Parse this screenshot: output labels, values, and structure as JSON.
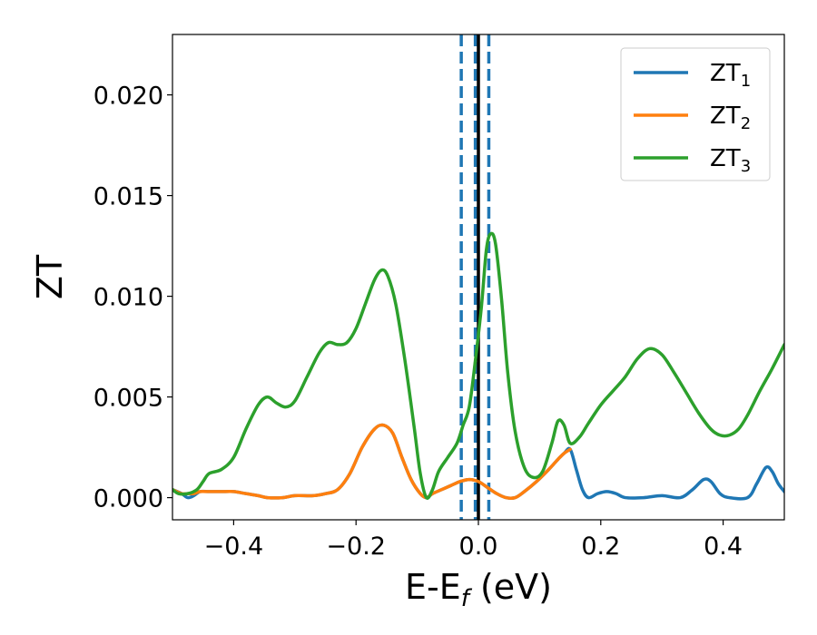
{
  "chart_data": {
    "type": "line",
    "title": "",
    "xlabel": {
      "main": "E-E",
      "sub": "f",
      "suffix": " (eV)"
    },
    "ylabel": "ZT",
    "xlim": [
      -0.5,
      0.5
    ],
    "ylim": [
      -0.0011,
      0.023
    ],
    "xticks": [
      {
        "value": -0.4,
        "label": "−0.4"
      },
      {
        "value": -0.2,
        "label": "−0.2"
      },
      {
        "value": 0.0,
        "label": "0.0"
      },
      {
        "value": 0.2,
        "label": "0.2"
      },
      {
        "value": 0.4,
        "label": "0.4"
      }
    ],
    "yticks": [
      {
        "value": 0.0,
        "label": "0.000"
      },
      {
        "value": 0.005,
        "label": "0.005"
      },
      {
        "value": 0.01,
        "label": "0.010"
      },
      {
        "value": 0.015,
        "label": "0.015"
      },
      {
        "value": 0.02,
        "label": "0.020"
      }
    ],
    "grid": false,
    "legend_position": "top-right",
    "vertical_lines": [
      {
        "x": -0.028,
        "style": "dashed",
        "color": "#1f77b4"
      },
      {
        "x": -0.005,
        "style": "dashed",
        "color": "#1f77b4"
      },
      {
        "x": 0.0,
        "style": "solid",
        "color": "#000000"
      },
      {
        "x": 0.017,
        "style": "dashed",
        "color": "#1f77b4"
      }
    ],
    "series": [
      {
        "name": "ZT",
        "sub": "1",
        "color": "#1f77b4",
        "points": [
          [
            -0.5,
            0.0004
          ],
          [
            -0.485,
            0.0002
          ],
          [
            -0.475,
            0.0
          ],
          [
            -0.465,
            0.0001
          ],
          [
            -0.455,
            0.0003
          ],
          [
            -0.44,
            0.0003
          ],
          [
            -0.42,
            0.0003
          ],
          [
            -0.4,
            0.0003
          ],
          [
            -0.38,
            0.0002
          ],
          [
            -0.36,
            0.0001
          ],
          [
            -0.345,
            0.0
          ],
          [
            -0.32,
            0.0
          ],
          [
            -0.3,
            0.0001
          ],
          [
            -0.27,
            0.0001
          ],
          [
            -0.25,
            0.0002
          ],
          [
            -0.23,
            0.0004
          ],
          [
            -0.21,
            0.0012
          ],
          [
            -0.19,
            0.0025
          ],
          [
            -0.17,
            0.0034
          ],
          [
            -0.155,
            0.0036
          ],
          [
            -0.14,
            0.0032
          ],
          [
            -0.125,
            0.002
          ],
          [
            -0.11,
            0.0009
          ],
          [
            -0.095,
            0.0002
          ],
          [
            -0.085,
            0.0
          ],
          [
            -0.075,
            0.0002
          ],
          [
            -0.06,
            0.0004
          ],
          [
            -0.045,
            0.0006
          ],
          [
            -0.03,
            0.0008
          ],
          [
            -0.015,
            0.0009
          ],
          [
            0.0,
            0.0008
          ],
          [
            0.015,
            0.0005
          ],
          [
            0.03,
            0.0002
          ],
          [
            0.045,
            0.0
          ],
          [
            0.06,
            0.0
          ],
          [
            0.075,
            0.0003
          ],
          [
            0.095,
            0.0008
          ],
          [
            0.115,
            0.0014
          ],
          [
            0.13,
            0.0019
          ],
          [
            0.14,
            0.0022
          ],
          [
            0.15,
            0.0024
          ],
          [
            0.16,
            0.0014
          ],
          [
            0.17,
            0.0004
          ],
          [
            0.18,
            0.0
          ],
          [
            0.195,
            0.0002
          ],
          [
            0.21,
            0.0003
          ],
          [
            0.225,
            0.0002
          ],
          [
            0.24,
            0.0
          ],
          [
            0.27,
            0.0
          ],
          [
            0.3,
            0.0001
          ],
          [
            0.33,
            0.0
          ],
          [
            0.35,
            0.0004
          ],
          [
            0.368,
            0.0009
          ],
          [
            0.38,
            0.0008
          ],
          [
            0.395,
            0.0002
          ],
          [
            0.41,
            0.0
          ],
          [
            0.44,
            0.0
          ],
          [
            0.455,
            0.0007
          ],
          [
            0.47,
            0.0015
          ],
          [
            0.48,
            0.0013
          ],
          [
            0.49,
            0.0007
          ],
          [
            0.5,
            0.0003
          ]
        ]
      },
      {
        "name": "ZT",
        "sub": "2",
        "color": "#ff7f0e",
        "points": [
          [
            -0.5,
            0.0004
          ],
          [
            -0.485,
            0.0002
          ],
          [
            -0.475,
            0.0002
          ],
          [
            -0.465,
            0.0002
          ],
          [
            -0.455,
            0.0003
          ],
          [
            -0.44,
            0.0003
          ],
          [
            -0.42,
            0.0003
          ],
          [
            -0.4,
            0.0003
          ],
          [
            -0.38,
            0.0002
          ],
          [
            -0.36,
            0.0001
          ],
          [
            -0.345,
            0.0
          ],
          [
            -0.32,
            0.0
          ],
          [
            -0.3,
            0.0001
          ],
          [
            -0.27,
            0.0001
          ],
          [
            -0.25,
            0.0002
          ],
          [
            -0.23,
            0.0004
          ],
          [
            -0.21,
            0.0012
          ],
          [
            -0.19,
            0.0025
          ],
          [
            -0.17,
            0.0034
          ],
          [
            -0.155,
            0.0036
          ],
          [
            -0.14,
            0.0032
          ],
          [
            -0.125,
            0.002
          ],
          [
            -0.11,
            0.0009
          ],
          [
            -0.095,
            0.0002
          ],
          [
            -0.085,
            0.0
          ],
          [
            -0.075,
            0.0002
          ],
          [
            -0.06,
            0.0004
          ],
          [
            -0.045,
            0.0006
          ],
          [
            -0.03,
            0.0008
          ],
          [
            -0.015,
            0.0009
          ],
          [
            0.0,
            0.0008
          ],
          [
            0.015,
            0.0005
          ],
          [
            0.03,
            0.0002
          ],
          [
            0.045,
            0.0
          ],
          [
            0.06,
            0.0
          ],
          [
            0.075,
            0.0003
          ],
          [
            0.095,
            0.0008
          ],
          [
            0.115,
            0.0014
          ],
          [
            0.13,
            0.0019
          ],
          [
            0.14,
            0.0022
          ],
          [
            0.15,
            0.0024
          ]
        ]
      },
      {
        "name": "ZT",
        "sub": "3",
        "color": "#2ca02c",
        "points": [
          [
            -0.5,
            0.0004
          ],
          [
            -0.49,
            0.0002
          ],
          [
            -0.475,
            0.0002
          ],
          [
            -0.46,
            0.0004
          ],
          [
            -0.45,
            0.0008
          ],
          [
            -0.44,
            0.0012
          ],
          [
            -0.42,
            0.0014
          ],
          [
            -0.4,
            0.002
          ],
          [
            -0.38,
            0.0034
          ],
          [
            -0.36,
            0.0046
          ],
          [
            -0.345,
            0.005
          ],
          [
            -0.33,
            0.0047
          ],
          [
            -0.315,
            0.0045
          ],
          [
            -0.3,
            0.0048
          ],
          [
            -0.28,
            0.006
          ],
          [
            -0.26,
            0.0072
          ],
          [
            -0.245,
            0.0077
          ],
          [
            -0.23,
            0.0076
          ],
          [
            -0.215,
            0.0077
          ],
          [
            -0.2,
            0.0084
          ],
          [
            -0.185,
            0.0096
          ],
          [
            -0.17,
            0.0108
          ],
          [
            -0.158,
            0.0113
          ],
          [
            -0.148,
            0.011
          ],
          [
            -0.135,
            0.0096
          ],
          [
            -0.12,
            0.0068
          ],
          [
            -0.105,
            0.0035
          ],
          [
            -0.095,
            0.0012
          ],
          [
            -0.085,
            0.0
          ],
          [
            -0.075,
            0.0004
          ],
          [
            -0.065,
            0.0013
          ],
          [
            -0.05,
            0.002
          ],
          [
            -0.035,
            0.0027
          ],
          [
            -0.025,
            0.0036
          ],
          [
            -0.015,
            0.0045
          ],
          [
            -0.005,
            0.0068
          ],
          [
            0.005,
            0.0095
          ],
          [
            0.013,
            0.0123
          ],
          [
            0.02,
            0.0131
          ],
          [
            0.028,
            0.0126
          ],
          [
            0.038,
            0.0098
          ],
          [
            0.048,
            0.0062
          ],
          [
            0.06,
            0.0033
          ],
          [
            0.075,
            0.0015
          ],
          [
            0.09,
            0.001
          ],
          [
            0.105,
            0.0013
          ],
          [
            0.12,
            0.0027
          ],
          [
            0.13,
            0.0038
          ],
          [
            0.14,
            0.0036
          ],
          [
            0.15,
            0.0027
          ],
          [
            0.165,
            0.003
          ],
          [
            0.18,
            0.0037
          ],
          [
            0.2,
            0.0046
          ],
          [
            0.22,
            0.0053
          ],
          [
            0.24,
            0.006
          ],
          [
            0.26,
            0.0069
          ],
          [
            0.28,
            0.0074
          ],
          [
            0.3,
            0.0071
          ],
          [
            0.32,
            0.0062
          ],
          [
            0.34,
            0.0052
          ],
          [
            0.36,
            0.0042
          ],
          [
            0.38,
            0.0034
          ],
          [
            0.395,
            0.0031
          ],
          [
            0.41,
            0.0031
          ],
          [
            0.425,
            0.0034
          ],
          [
            0.44,
            0.0041
          ],
          [
            0.46,
            0.0053
          ],
          [
            0.48,
            0.0064
          ],
          [
            0.5,
            0.0076
          ]
        ]
      }
    ]
  }
}
